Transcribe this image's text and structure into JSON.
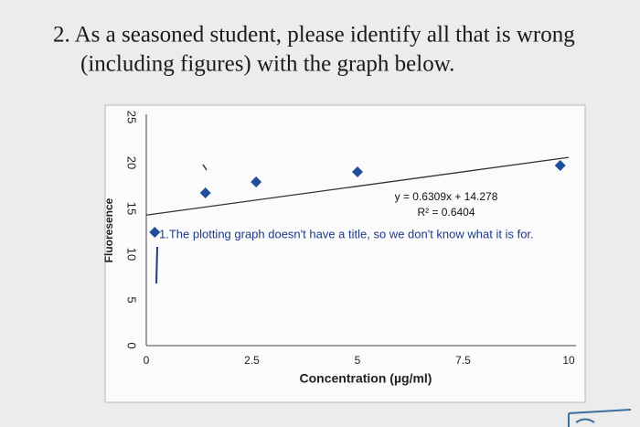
{
  "question": {
    "lines": [
      "2. As a seasoned student, please identify all that is wrong",
      "(including figures) with the graph below."
    ]
  },
  "chart_data": {
    "type": "scatter",
    "x_label": "Concentration (µg/ml)",
    "y_label": "Fluoresence",
    "series": [
      {
        "name": null,
        "color": "#1f4e9a",
        "x": [
          0.2,
          1.4,
          2.6,
          5,
          9.8
        ],
        "values": [
          12.4,
          16.7,
          17.9,
          19,
          19.7
        ]
      }
    ],
    "trendline": {
      "slope": 0.6309,
      "intercept": 14.278,
      "equation": "y = 0.6309x + 14.278",
      "r2": "R² = 0.6404"
    },
    "annotation": "1.The plotting graph doesn't have a title, so we don't know what it is for.",
    "xlim": [
      0,
      10
    ],
    "xticks": [
      0,
      2.5,
      5,
      7.5,
      10
    ],
    "ylim": [
      0,
      25
    ],
    "yticks": [
      0,
      5,
      10,
      15,
      20,
      25
    ]
  }
}
